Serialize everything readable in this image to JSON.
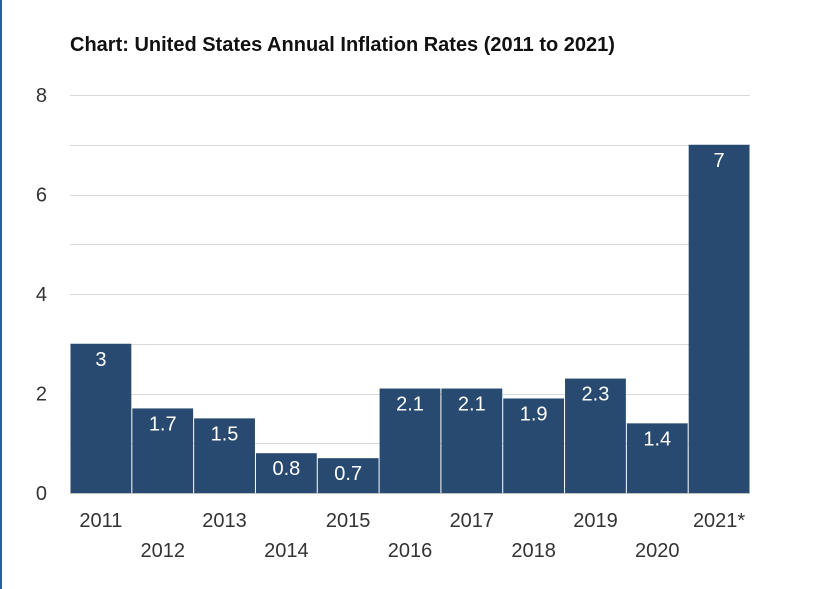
{
  "chart_data": {
    "type": "bar",
    "title": "Chart: United States Annual Inflation Rates (2011 to 2021)",
    "xlabel": "",
    "ylabel": "",
    "categories": [
      "2011",
      "2012",
      "2013",
      "2014",
      "2015",
      "2016",
      "2017",
      "2018",
      "2019",
      "2020",
      "2021*"
    ],
    "values": [
      3,
      1.7,
      1.5,
      0.8,
      0.7,
      2.1,
      2.1,
      1.9,
      2.3,
      1.4,
      7
    ],
    "value_labels": [
      "3",
      "1.7",
      "1.5",
      "0.8",
      "0.7",
      "2.1",
      "2.1",
      "1.9",
      "2.3",
      "1.4",
      "7"
    ],
    "ylim": [
      0,
      8
    ],
    "yticks": [
      "0",
      "2",
      "4",
      "6",
      "8"
    ],
    "grid": true,
    "legend": "none",
    "bar_color": "#284a70",
    "grid_color": "#d9d9d9"
  }
}
